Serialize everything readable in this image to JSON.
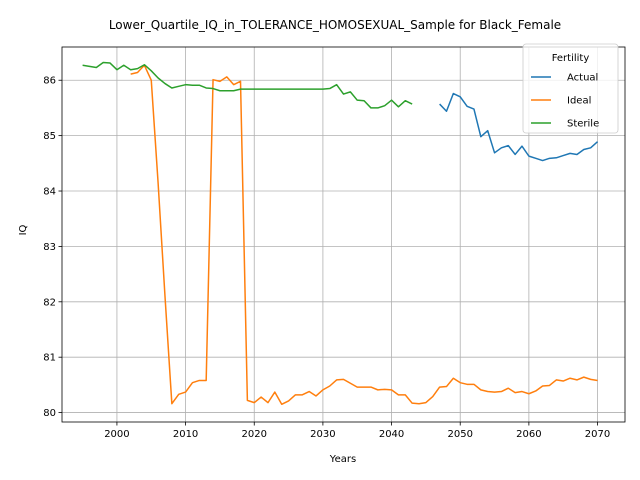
{
  "chart_data": {
    "type": "line",
    "title": "Lower_Quartile_IQ_in_TOLERANCE_HOMOSEXUAL_Sample for Black_Female",
    "xlabel": "Years",
    "ylabel": "IQ",
    "xlim": [
      1992,
      2074
    ],
    "ylim": [
      79.83,
      86.6
    ],
    "xticks": [
      2000,
      2010,
      2020,
      2030,
      2040,
      2050,
      2060,
      2070
    ],
    "yticks": [
      80,
      81,
      82,
      83,
      84,
      85,
      86
    ],
    "grid": true,
    "legend": {
      "title": "Fertility",
      "placement": "upper right"
    },
    "series": [
      {
        "name": "Actual",
        "color": "#1f77b4",
        "x": [
          2047,
          2048,
          2049,
          2050,
          2051,
          2052,
          2053,
          2054,
          2055,
          2056,
          2057,
          2058,
          2059,
          2060,
          2061,
          2062,
          2063,
          2064,
          2065,
          2066,
          2067,
          2068,
          2069,
          2070
        ],
        "y": [
          85.57,
          85.44,
          85.76,
          85.7,
          85.53,
          85.48,
          84.98,
          85.09,
          84.69,
          84.78,
          84.82,
          84.66,
          84.81,
          84.63,
          84.59,
          84.55,
          84.59,
          84.6,
          84.64,
          84.68,
          84.66,
          84.75,
          84.78,
          84.89
        ]
      },
      {
        "name": "Ideal",
        "color": "#ff7f0e",
        "x": [
          2002,
          2003,
          2004,
          2005,
          2006,
          2007,
          2008,
          2009,
          2010,
          2011,
          2012,
          2013,
          2014,
          2015,
          2016,
          2017,
          2018,
          2019,
          2020,
          2021,
          2022,
          2023,
          2024,
          2025,
          2026,
          2027,
          2028,
          2029,
          2030,
          2031,
          2032,
          2033,
          2034,
          2035,
          2036,
          2037,
          2038,
          2039,
          2040,
          2041,
          2042,
          2043,
          2044,
          2045,
          2046,
          2047,
          2048,
          2049,
          2050,
          2051,
          2052,
          2053,
          2054,
          2055,
          2056,
          2057,
          2058,
          2059,
          2060,
          2061,
          2062,
          2063,
          2064,
          2065,
          2066,
          2067,
          2068,
          2069,
          2070
        ],
        "y": [
          86.11,
          86.14,
          86.27,
          86.0,
          84.14,
          82.1,
          80.16,
          80.33,
          80.37,
          80.54,
          80.58,
          80.58,
          86.01,
          85.98,
          86.06,
          85.92,
          85.98,
          80.22,
          80.18,
          80.28,
          80.18,
          80.37,
          80.15,
          80.21,
          80.32,
          80.32,
          80.38,
          80.3,
          80.41,
          80.48,
          80.59,
          80.6,
          80.53,
          80.46,
          80.46,
          80.46,
          80.41,
          80.42,
          80.41,
          80.32,
          80.32,
          80.17,
          80.16,
          80.18,
          80.29,
          80.46,
          80.47,
          80.62,
          80.54,
          80.51,
          80.51,
          80.41,
          80.38,
          80.37,
          80.38,
          80.44,
          80.36,
          80.38,
          80.34,
          80.39,
          80.48,
          80.49,
          80.59,
          80.57,
          80.62,
          80.59,
          80.64,
          80.6,
          80.58
        ]
      },
      {
        "name": "Sterile",
        "color": "#2ca02c",
        "x": [
          1995,
          1996,
          1997,
          1998,
          1999,
          2000,
          2001,
          2002,
          2003,
          2004,
          2005,
          2006,
          2007,
          2008,
          2009,
          2010,
          2011,
          2012,
          2013,
          2014,
          2015,
          2016,
          2017,
          2018,
          2019,
          2020,
          2021,
          2022,
          2023,
          2024,
          2025,
          2026,
          2027,
          2028,
          2029,
          2030,
          2031,
          2032,
          2033,
          2034,
          2035,
          2036,
          2037,
          2038,
          2039,
          2040,
          2041,
          2042,
          2043
        ],
        "y": [
          86.27,
          86.25,
          86.23,
          86.32,
          86.31,
          86.19,
          86.27,
          86.19,
          86.21,
          86.28,
          86.17,
          86.04,
          85.94,
          85.86,
          85.89,
          85.92,
          85.91,
          85.91,
          85.86,
          85.85,
          85.81,
          85.81,
          85.81,
          85.84,
          85.84,
          85.84,
          85.84,
          85.84,
          85.84,
          85.84,
          85.84,
          85.84,
          85.84,
          85.84,
          85.84,
          85.84,
          85.85,
          85.92,
          85.75,
          85.79,
          85.64,
          85.63,
          85.5,
          85.5,
          85.54,
          85.64,
          85.52,
          85.63,
          85.57
        ]
      }
    ]
  }
}
